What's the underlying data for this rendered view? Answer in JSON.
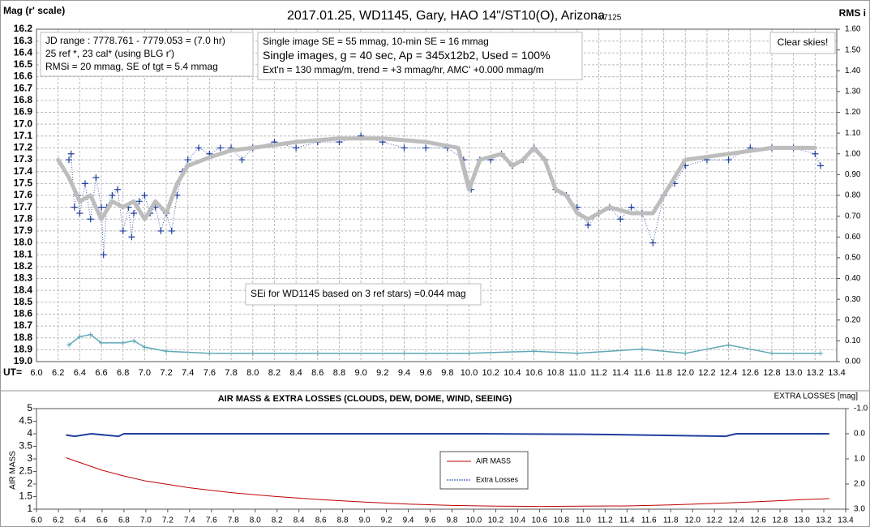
{
  "chart_data": [
    {
      "type": "scatter",
      "title": "2017.01.25, WD1145, Gary, HAO  14\"/ST10(O), Arizona",
      "subtitle": "- v7125",
      "y_label": "Mag (r' scale)",
      "y2_label": "RMS i",
      "x_label": "UT=",
      "grid": true,
      "xlim": [
        6.0,
        13.4
      ],
      "xticks": [
        {
          "value": 6,
          "label": "6.0"
        },
        6.2,
        6.4,
        6.6,
        6.8,
        {
          "value": 7,
          "label": "7.0"
        },
        7.2,
        7.4,
        7.6,
        7.8,
        {
          "value": 8,
          "label": "8.0"
        },
        8.2,
        8.4,
        8.6,
        8.8,
        {
          "value": 9,
          "label": "9.0"
        },
        9.2,
        9.4,
        9.6,
        9.8,
        {
          "value": 10,
          "label": "10.0"
        },
        10.2,
        10.4,
        10.6,
        10.8,
        {
          "value": 11,
          "label": "11.0"
        },
        11.2,
        11.4,
        11.6,
        11.8,
        {
          "value": 12,
          "label": "12.0"
        },
        12.2,
        12.4,
        12.6,
        12.8,
        {
          "value": 13,
          "label": "13.0"
        },
        13.2,
        13.4
      ],
      "ylim": [
        19.0,
        16.2
      ],
      "yticks": [
        16.2,
        16.3,
        16.4,
        16.5,
        16.6,
        16.7,
        16.8,
        16.9,
        {
          "value": 17,
          "label": "17.0"
        },
        17.1,
        17.2,
        17.3,
        17.4,
        17.5,
        17.6,
        17.7,
        17.8,
        17.9,
        {
          "value": 18,
          "label": "18.0"
        },
        18.1,
        18.2,
        18.3,
        18.4,
        18.5,
        18.6,
        18.7,
        18.8,
        18.9,
        {
          "value": 19,
          "label": "19.0"
        }
      ],
      "y2lim": [
        0,
        1.6
      ],
      "y2ticks": [
        {
          "value": 0,
          "label": "0.00"
        },
        {
          "value": 0.1,
          "label": "0.10"
        },
        {
          "value": 0.2,
          "label": "0.20"
        },
        {
          "value": 0.3,
          "label": "0.30"
        },
        {
          "value": 0.4,
          "label": "0.40"
        },
        {
          "value": 0.5,
          "label": "0.50"
        },
        {
          "value": 0.6,
          "label": "0.60"
        },
        {
          "value": 0.7,
          "label": "0.70"
        },
        {
          "value": 0.8,
          "label": "0.80"
        },
        {
          "value": 0.9,
          "label": "0.90"
        },
        {
          "value": 1,
          "label": "1.00"
        },
        {
          "value": 1.1,
          "label": "1.10"
        },
        {
          "value": 1.2,
          "label": "1.20"
        },
        {
          "value": 1.3,
          "label": "1.30"
        },
        {
          "value": 1.4,
          "label": "1.40"
        },
        {
          "value": 1.5,
          "label": "1.50"
        },
        {
          "value": 1.6,
          "label": "1.60"
        }
      ],
      "info_boxes": [
        [
          "JD range  : 7778.761 - 7779.053  = (7.0 hr)",
          "25 ref *, 23 cal* (using BLG r')",
          "RMSi = 20 mmag, SE of tgt = 5.4 mmag"
        ],
        [
          "Single image SE = 55 mmag, 10-min SE = 16 mmag",
          "Single images, g = 40 sec, Ap = 345x12b2, Used = 100%",
          "Ext'n = 130 mmag/m, trend = +3 mmag/hr, AMC' +0.000 mmag/m"
        ],
        [
          "Clear skies!"
        ],
        [
          "SEi for WD1145 based on 3 ref stars) =0.044 mag"
        ]
      ],
      "series": [
        {
          "color": "#1f3f9f",
          "x": [
            6.3,
            6.32,
            6.35,
            6.38,
            6.4,
            6.45,
            6.5,
            6.55,
            6.6,
            6.62,
            6.65,
            6.7,
            6.75,
            6.8,
            6.85,
            6.88,
            6.9,
            6.95,
            7.0,
            7.05,
            7.1,
            7.15,
            7.2,
            7.25,
            7.3,
            7.35,
            7.4,
            7.5,
            7.6,
            7.7,
            7.8,
            7.9,
            8.0,
            8.2,
            8.4,
            8.6,
            8.8,
            9.0,
            9.2,
            9.4,
            9.6,
            9.8,
            9.95,
            10.02,
            10.1,
            10.2,
            10.3,
            10.4,
            10.5,
            10.6,
            10.7,
            10.8,
            10.9,
            11.0,
            11.1,
            11.2,
            11.3,
            11.4,
            11.5,
            11.6,
            11.7,
            11.8,
            11.9,
            12.0,
            12.2,
            12.4,
            12.6,
            12.8,
            13.0,
            13.2,
            13.25
          ],
          "values": [
            17.3,
            17.25,
            17.7,
            17.6,
            17.75,
            17.5,
            17.8,
            17.45,
            17.7,
            18.1,
            17.7,
            17.6,
            17.55,
            17.9,
            17.7,
            17.95,
            17.75,
            17.65,
            17.6,
            17.75,
            17.7,
            17.9,
            17.75,
            17.9,
            17.6,
            17.4,
            17.3,
            17.2,
            17.25,
            17.2,
            17.2,
            17.3,
            17.2,
            17.15,
            17.2,
            17.15,
            17.15,
            17.1,
            17.15,
            17.2,
            17.2,
            17.2,
            17.3,
            17.55,
            17.3,
            17.3,
            17.25,
            17.35,
            17.3,
            17.2,
            17.3,
            17.55,
            17.6,
            17.7,
            17.85,
            17.75,
            17.7,
            17.8,
            17.7,
            17.75,
            18.0,
            17.6,
            17.5,
            17.35,
            17.3,
            17.3,
            17.2,
            17.2,
            17.2,
            17.25,
            17.35
          ]
        },
        {
          "color": "#bdbdbd",
          "x": [
            6.2,
            6.3,
            6.4,
            6.5,
            6.6,
            6.7,
            6.8,
            6.9,
            7.0,
            7.1,
            7.2,
            7.3,
            7.4,
            7.6,
            7.8,
            8.0,
            8.4,
            8.8,
            9.2,
            9.6,
            9.9,
            10.0,
            10.1,
            10.3,
            10.4,
            10.5,
            10.6,
            10.7,
            10.8,
            10.9,
            11.0,
            11.1,
            11.3,
            11.5,
            11.7,
            11.8,
            11.9,
            12.0,
            12.4,
            12.8,
            13.2
          ],
          "values": [
            17.3,
            17.45,
            17.65,
            17.6,
            17.8,
            17.65,
            17.7,
            17.65,
            17.8,
            17.65,
            17.75,
            17.5,
            17.35,
            17.28,
            17.22,
            17.2,
            17.15,
            17.12,
            17.12,
            17.15,
            17.2,
            17.55,
            17.3,
            17.25,
            17.35,
            17.3,
            17.2,
            17.3,
            17.55,
            17.6,
            17.75,
            17.8,
            17.7,
            17.75,
            17.75,
            17.6,
            17.45,
            17.3,
            17.25,
            17.2,
            17.2
          ]
        },
        {
          "color": "#5fa8b8",
          "axis": "y2",
          "x": [
            6.3,
            6.4,
            6.5,
            6.6,
            6.8,
            6.9,
            7.0,
            7.2,
            7.6,
            8.0,
            8.6,
            9.4,
            10.0,
            10.6,
            11.0,
            11.6,
            12.0,
            12.4,
            12.8,
            13.25
          ],
          "values": [
            0.08,
            0.12,
            0.13,
            0.09,
            0.09,
            0.1,
            0.07,
            0.05,
            0.04,
            0.04,
            0.04,
            0.04,
            0.04,
            0.05,
            0.04,
            0.06,
            0.04,
            0.08,
            0.04,
            0.04
          ]
        }
      ]
    },
    {
      "type": "line",
      "title": "AIR MASS & EXTRA LOSSES (CLOUDS, DEW, DOME, WIND, SEEING)",
      "y_label": "AIR MASS",
      "y2_label": "EXTRA LOSSES [mag]",
      "grid": false,
      "legend": "center",
      "xlim": [
        6.0,
        13.4
      ],
      "xticks": [
        {
          "value": 6,
          "label": "6.0"
        },
        6.2,
        6.4,
        6.6,
        6.8,
        {
          "value": 7,
          "label": "7.0"
        },
        7.2,
        7.4,
        7.6,
        7.8,
        {
          "value": 8,
          "label": "8.0"
        },
        8.2,
        8.4,
        8.6,
        8.8,
        {
          "value": 9,
          "label": "9.0"
        },
        9.2,
        9.4,
        9.6,
        9.8,
        {
          "value": 10,
          "label": "10.0"
        },
        10.2,
        10.4,
        10.6,
        10.8,
        {
          "value": 11,
          "label": "11.0"
        },
        11.2,
        11.4,
        11.6,
        11.8,
        {
          "value": 12,
          "label": "12.0"
        },
        12.2,
        12.4,
        12.6,
        12.8,
        {
          "value": 13,
          "label": "13.0"
        },
        13.2,
        13.4
      ],
      "ylim": [
        1,
        5
      ],
      "yticks": [
        1,
        1.5,
        2,
        2.5,
        3,
        3.5,
        4,
        4.5,
        5
      ],
      "y2lim": [
        3.0,
        -1.0
      ],
      "y2ticks": [
        {
          "value": -1,
          "label": "-1.0"
        },
        {
          "value": 0,
          "label": "0.0"
        },
        {
          "value": 1,
          "label": "1.0"
        },
        {
          "value": 2,
          "label": "2.0"
        },
        {
          "value": 3,
          "label": "3.0"
        }
      ],
      "series": [
        {
          "name": "AIR MASS",
          "color": "#c00000",
          "x": [
            6.27,
            6.4,
            6.6,
            6.8,
            7.0,
            7.4,
            7.8,
            8.2,
            8.6,
            9.0,
            9.4,
            9.8,
            10.2,
            10.6,
            11.0,
            11.4,
            11.8,
            12.2,
            12.6,
            13.0,
            13.25
          ],
          "values": [
            3.05,
            2.85,
            2.55,
            2.32,
            2.12,
            1.85,
            1.65,
            1.5,
            1.38,
            1.28,
            1.2,
            1.15,
            1.12,
            1.11,
            1.12,
            1.13,
            1.17,
            1.23,
            1.3,
            1.38,
            1.42
          ]
        },
        {
          "name": "Extra Losses",
          "color": "#1f3f9f",
          "axis": "y2",
          "x": [
            6.27,
            6.35,
            6.5,
            6.75,
            6.8,
            8.0,
            10.0,
            11.0,
            11.5,
            12.3,
            12.4,
            13.25
          ],
          "values": [
            0.05,
            0.1,
            0.0,
            0.1,
            0.0,
            0.0,
            0.0,
            0.02,
            0.05,
            0.1,
            0.0,
            0.0
          ]
        }
      ]
    }
  ]
}
